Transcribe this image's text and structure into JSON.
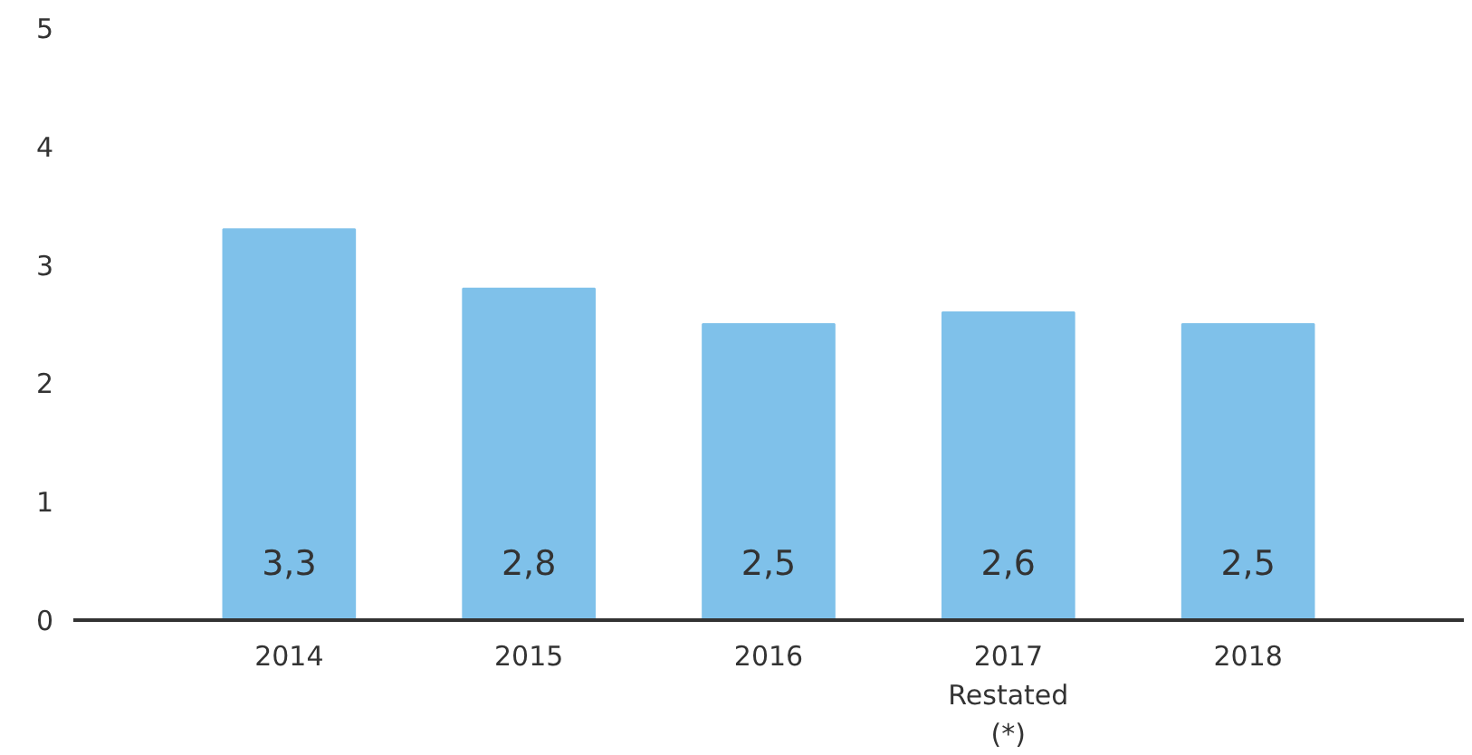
{
  "chart_data": {
    "type": "bar",
    "categories": [
      "2014",
      "2015",
      "2016",
      "2017\nRestated\n(*)",
      "2018"
    ],
    "values": [
      3.3,
      2.8,
      2.5,
      2.6,
      2.5
    ],
    "value_labels": [
      "3,3",
      "2,8",
      "2,5",
      "2,6",
      "2,5"
    ],
    "color": "#7fc1ea",
    "ylim": [
      0,
      5
    ],
    "yticks": [
      0,
      1,
      2,
      3,
      4,
      5
    ],
    "grid": false
  }
}
